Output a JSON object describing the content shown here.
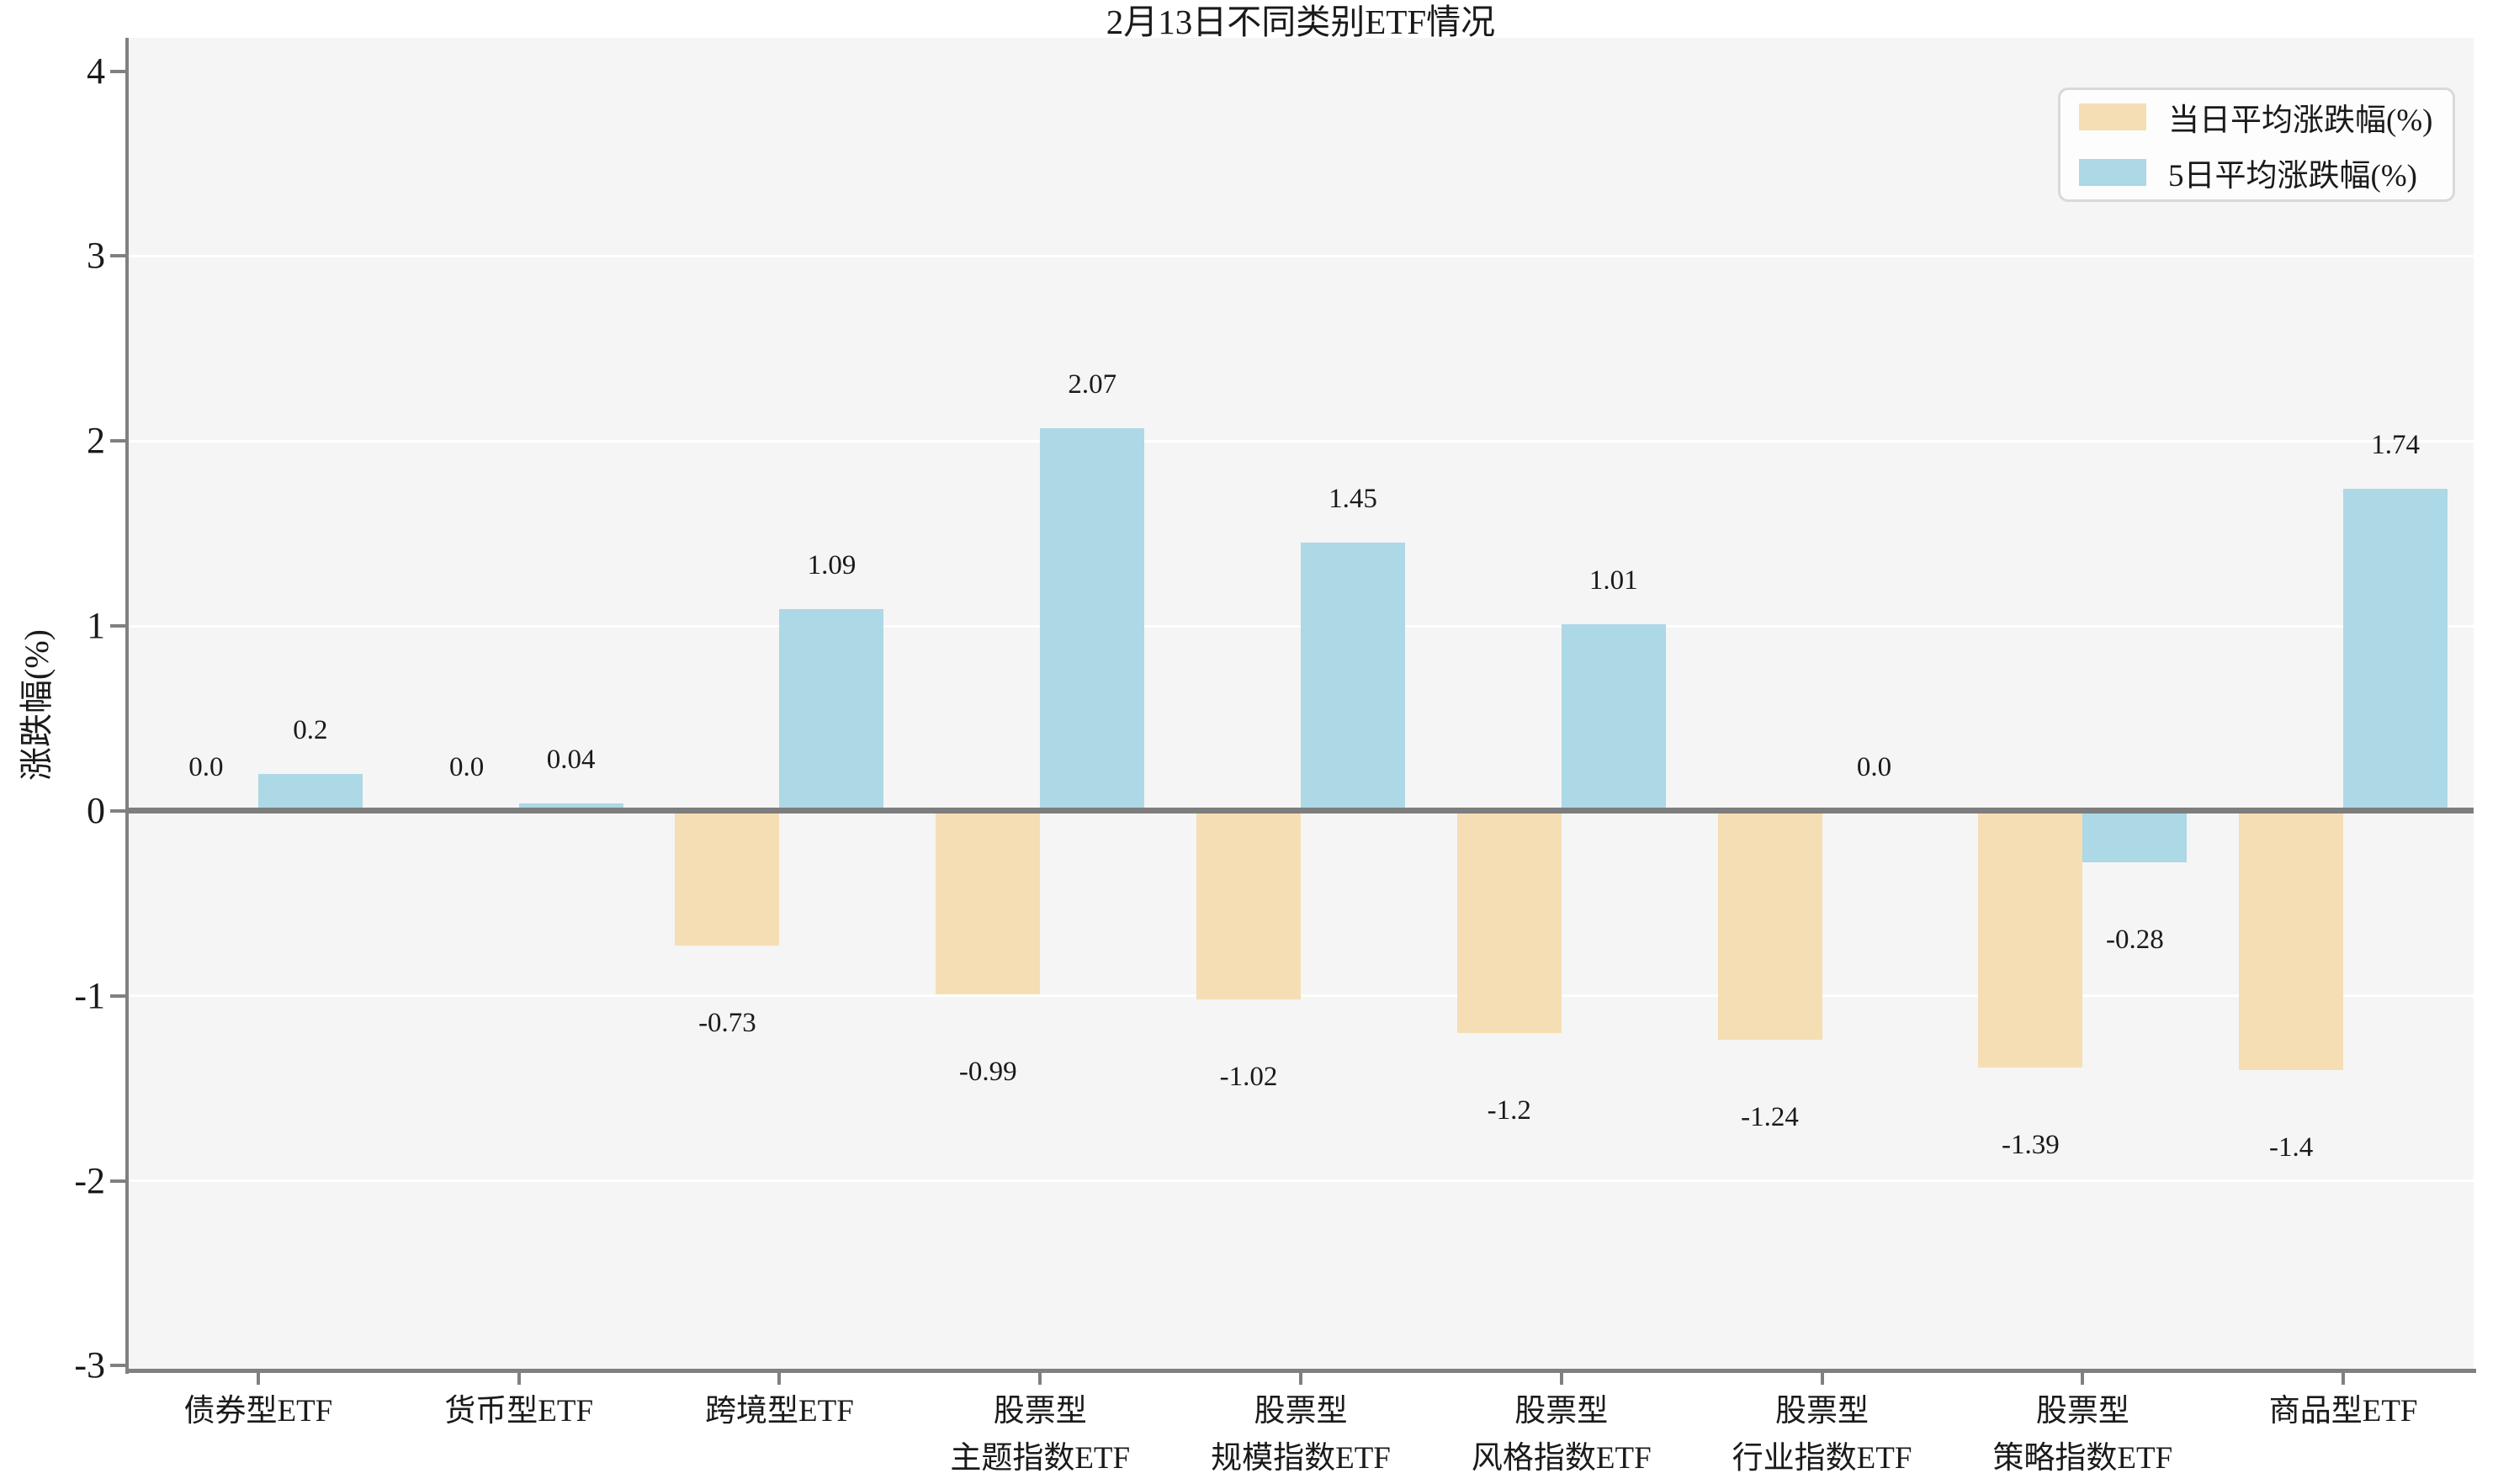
{
  "title": "2月13日不同类别ETF情况",
  "y_axis_label": "涨跌幅(%)",
  "legend": {
    "items": [
      {
        "label": "当日平均涨跌幅(%)"
      },
      {
        "label": "5日平均涨跌幅(%)"
      }
    ]
  },
  "colors": {
    "day_bar": "#f5deb3",
    "five_day_bar": "#add8e6",
    "plot_background": "#f5f5f5",
    "gridline": "#ffffff",
    "axis": "#808080",
    "zero_line": "#7d7d7d",
    "text": "#1a1a1a",
    "legend_border": "#d9d9d9"
  },
  "chart_data": {
    "type": "bar",
    "title": "2月13日不同类别ETF情况",
    "xlabel": "",
    "ylabel": "涨跌幅(%)",
    "categories": [
      "债券型ETF",
      "货币型ETF",
      "跨境型ETF",
      "股票型\n主题指数ETF",
      "股票型\n规模指数ETF",
      "股票型\n风格指数ETF",
      "股票型\n行业指数ETF",
      "股票型\n策略指数ETF",
      "商品型ETF"
    ],
    "series": [
      {
        "name": "当日平均涨跌幅(%)",
        "color": "#f5deb3",
        "values": [
          0.0,
          0.0,
          -0.73,
          -0.99,
          -1.02,
          -1.2,
          -1.24,
          -1.39,
          -1.4
        ],
        "value_labels": [
          "0.0",
          "0.0",
          "-0.73",
          "-0.99",
          "-1.02",
          "-1.2",
          "-1.24",
          "-1.39",
          "-1.4"
        ]
      },
      {
        "name": "5日平均涨跌幅(%)",
        "color": "#add8e6",
        "values": [
          0.2,
          0.04,
          1.09,
          2.07,
          1.45,
          1.01,
          0.0,
          -0.28,
          1.74
        ],
        "value_labels": [
          "0.2",
          "0.04",
          "1.09",
          "2.07",
          "1.45",
          "1.01",
          "0.0",
          "-0.28",
          "1.74"
        ]
      }
    ],
    "yticks": [
      -3,
      -2,
      -1,
      0,
      1,
      2,
      3,
      4
    ],
    "ylim": [
      -3,
      4
    ],
    "grid": "horizontal",
    "legend_position": "upper-right"
  }
}
